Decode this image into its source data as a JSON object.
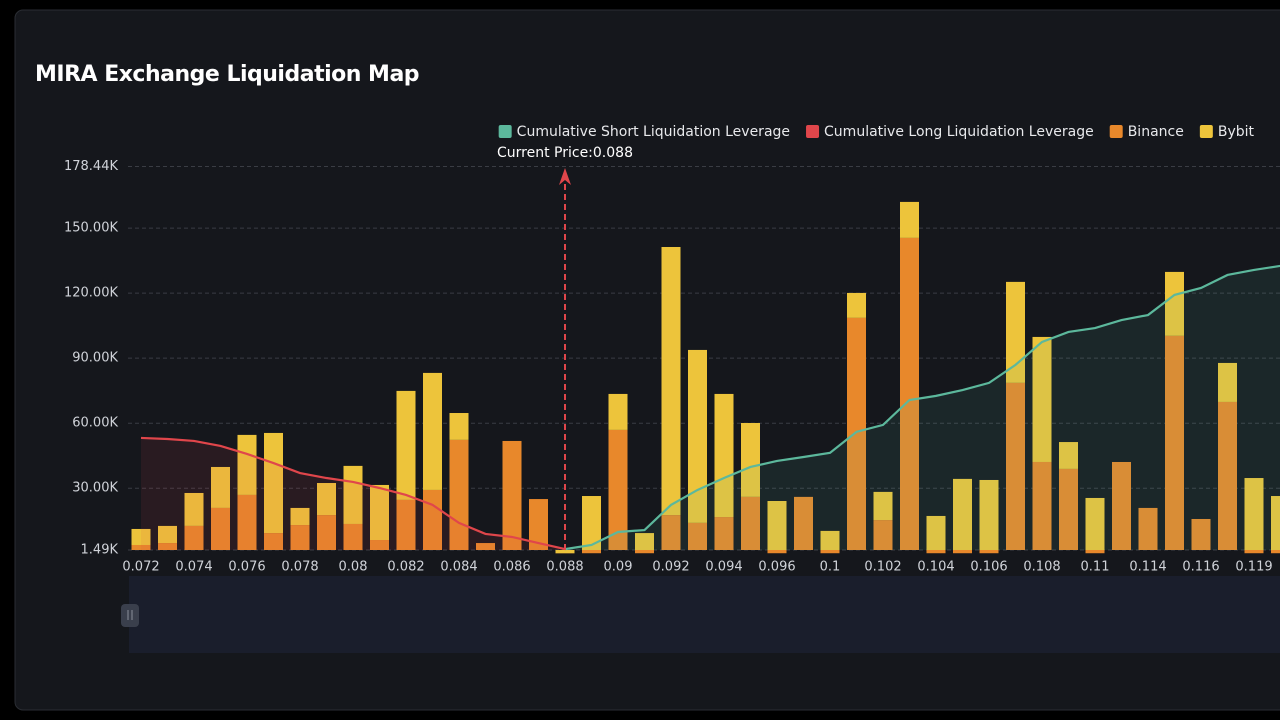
{
  "chart_data": {
    "type": "bar",
    "title": "MIRA Exchange Liquidation Map",
    "categories": [
      "0.072",
      null,
      "0.074",
      null,
      "0.076",
      null,
      "0.078",
      null,
      "0.08",
      null,
      "0.082",
      null,
      "0.084",
      null,
      "0.086",
      null,
      "0.088",
      null,
      "0.09",
      null,
      "0.092",
      null,
      "0.094",
      null,
      "0.096",
      null,
      "0.1",
      null,
      "0.102",
      null,
      "0.104",
      null,
      "0.106",
      null,
      "0.108",
      null,
      "0.11",
      null,
      "0.114",
      null,
      "0.116",
      null,
      "0.119",
      null
    ],
    "series": [
      {
        "name": "Cumulative Short Liquidation Leverage",
        "type": "line",
        "color": "#5cb89c",
        "values": [
          null,
          null,
          null,
          null,
          null,
          null,
          null,
          null,
          null,
          null,
          null,
          null,
          null,
          null,
          null,
          null,
          1900,
          3800,
          9800,
          10700,
          22300,
          29200,
          34700,
          39800,
          42600,
          44400,
          46300,
          56000,
          59200,
          70700,
          72600,
          75300,
          78600,
          86900,
          97500,
          102100,
          103900,
          107600,
          109900,
          119200,
          122400,
          128400,
          130700,
          132600
        ]
      },
      {
        "name": "Cumulative Long Liquidation Leverage",
        "type": "line",
        "color": "#e0464b",
        "values": [
          53200,
          52700,
          51800,
          49500,
          45800,
          41600,
          37000,
          34700,
          32900,
          30100,
          26900,
          22300,
          14000,
          8900,
          7500,
          4700,
          1900,
          null,
          null,
          null,
          null,
          null,
          null,
          null,
          null,
          null,
          null,
          null,
          null,
          null,
          null,
          null,
          null,
          null,
          null,
          null,
          null,
          null,
          null,
          null,
          null,
          null,
          null,
          null
        ]
      },
      {
        "name": "Binance",
        "type": "bar",
        "color": "#e8882b",
        "values": [
          3800,
          4700,
          12600,
          20900,
          26900,
          9300,
          13000,
          17600,
          13500,
          6100,
          24600,
          29200,
          52300,
          4700,
          51800,
          25000,
          0,
          0,
          56900,
          0,
          17600,
          14000,
          16700,
          26000,
          0,
          26000,
          0,
          108600,
          15300,
          145500,
          0,
          0,
          0,
          78600,
          42100,
          38900,
          0,
          42100,
          20900,
          100300,
          15800,
          69800,
          0,
          0
        ]
      },
      {
        "name": "Bybit",
        "type": "bar",
        "color": "#edc43b",
        "values": [
          7400,
          7900,
          15200,
          18900,
          27700,
          46200,
          7900,
          14800,
          26800,
          25400,
          50300,
          54000,
          12400,
          0,
          0,
          0,
          0,
          26400,
          16600,
          9300,
          123700,
          79800,
          56800,
          34100,
          24100,
          0,
          10300,
          11500,
          13000,
          16600,
          17200,
          34300,
          33800,
          46600,
          57700,
          12400,
          25500,
          0,
          0,
          29500,
          0,
          18000,
          34700,
          26400
        ]
      }
    ],
    "ylim": [
      1490,
      178440
    ],
    "yticks": [
      {
        "value": 1490,
        "label": "1.49K"
      },
      {
        "value": 30000,
        "label": "30.00K"
      },
      {
        "value": 60000,
        "label": "60.00K"
      },
      {
        "value": 90000,
        "label": "90.00K"
      },
      {
        "value": 120000,
        "label": "120.00K"
      },
      {
        "value": 150000,
        "label": "150.00K"
      },
      {
        "value": 178440,
        "label": "178.44K"
      }
    ],
    "grid": true,
    "legend": "top-right",
    "annotations": [
      {
        "text": "Current Price:0.088",
        "x": "0.088",
        "color": "#e0464b"
      }
    ]
  }
}
